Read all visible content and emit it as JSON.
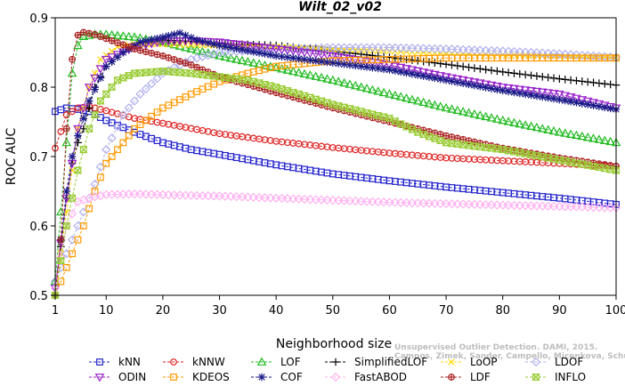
{
  "chart_data": {
    "type": "line",
    "title": "Wilt_02_v02",
    "xlabel": "Neighborhood size",
    "ylabel": "ROC AUC",
    "xlim": [
      1,
      100
    ],
    "ylim": [
      0.5,
      0.9
    ],
    "xticks": [
      "1",
      "10",
      "20",
      "30",
      "40",
      "50",
      "60",
      "70",
      "80",
      "90",
      "100"
    ],
    "yticks": [
      "0.5",
      "0.6",
      "0.7",
      "0.8",
      "0.9"
    ],
    "grid": false,
    "legend_position": "bottom",
    "watermark": [
      "Unsupervised Outlier Detection. DAMI, 2015.",
      "Campos, Zimek, Sander, Campello, Micenkova, Schubert, Assent, Houle"
    ],
    "series": [
      {
        "name": "kNN",
        "color": "#2222cc",
        "marker": "square",
        "points": [
          [
            1,
            0.765
          ],
          [
            3,
            0.77
          ],
          [
            5,
            0.768
          ],
          [
            7,
            0.765
          ],
          [
            10,
            0.752
          ],
          [
            15,
            0.735
          ],
          [
            20,
            0.72
          ],
          [
            25,
            0.71
          ],
          [
            30,
            0.703
          ],
          [
            40,
            0.688
          ],
          [
            50,
            0.675
          ],
          [
            60,
            0.665
          ],
          [
            70,
            0.656
          ],
          [
            80,
            0.648
          ],
          [
            90,
            0.64
          ],
          [
            100,
            0.631
          ]
        ]
      },
      {
        "name": "kNNW",
        "color": "#dd2222",
        "marker": "circle",
        "points": [
          [
            1,
            0.712
          ],
          [
            3,
            0.76
          ],
          [
            5,
            0.77
          ],
          [
            7,
            0.772
          ],
          [
            10,
            0.766
          ],
          [
            15,
            0.755
          ],
          [
            20,
            0.748
          ],
          [
            30,
            0.733
          ],
          [
            40,
            0.722
          ],
          [
            50,
            0.713
          ],
          [
            60,
            0.705
          ],
          [
            70,
            0.698
          ],
          [
            80,
            0.694
          ],
          [
            90,
            0.69
          ],
          [
            100,
            0.686
          ]
        ]
      },
      {
        "name": "LOF",
        "color": "#22bb22",
        "marker": "triangle-up",
        "points": [
          [
            1,
            0.52
          ],
          [
            2,
            0.62
          ],
          [
            3,
            0.72
          ],
          [
            4,
            0.82
          ],
          [
            5,
            0.86
          ],
          [
            6,
            0.873
          ],
          [
            8,
            0.876
          ],
          [
            10,
            0.876
          ],
          [
            15,
            0.872
          ],
          [
            20,
            0.865
          ],
          [
            25,
            0.855
          ],
          [
            30,
            0.845
          ],
          [
            40,
            0.828
          ],
          [
            50,
            0.81
          ],
          [
            60,
            0.79
          ],
          [
            70,
            0.77
          ],
          [
            80,
            0.752
          ],
          [
            90,
            0.735
          ],
          [
            100,
            0.72
          ]
        ]
      },
      {
        "name": "SimplifiedLOF",
        "color": "#000000",
        "marker": "plus",
        "points": [
          [
            1,
            0.5
          ],
          [
            2,
            0.57
          ],
          [
            3,
            0.64
          ],
          [
            4,
            0.69
          ],
          [
            5,
            0.72
          ],
          [
            6,
            0.74
          ],
          [
            8,
            0.8
          ],
          [
            10,
            0.83
          ],
          [
            13,
            0.85
          ],
          [
            16,
            0.862
          ],
          [
            20,
            0.868
          ],
          [
            25,
            0.866
          ],
          [
            30,
            0.863
          ],
          [
            40,
            0.86
          ],
          [
            50,
            0.852
          ],
          [
            60,
            0.843
          ],
          [
            70,
            0.833
          ],
          [
            80,
            0.822
          ],
          [
            90,
            0.812
          ],
          [
            100,
            0.803
          ]
        ]
      },
      {
        "name": "LoOP",
        "color": "#ffd700",
        "marker": "cross",
        "points": [
          [
            1,
            0.5
          ],
          [
            3,
            0.62
          ],
          [
            5,
            0.74
          ],
          [
            7,
            0.8
          ],
          [
            9,
            0.84
          ],
          [
            12,
            0.858
          ],
          [
            15,
            0.862
          ],
          [
            20,
            0.862
          ],
          [
            30,
            0.86
          ],
          [
            40,
            0.858
          ],
          [
            50,
            0.855
          ],
          [
            60,
            0.852
          ],
          [
            70,
            0.849
          ],
          [
            80,
            0.847
          ],
          [
            90,
            0.845
          ],
          [
            100,
            0.843
          ]
        ]
      },
      {
        "name": "LDOF",
        "color": "#b0b0ee",
        "marker": "diamond",
        "points": [
          [
            1,
            0.52
          ],
          [
            3,
            0.56
          ],
          [
            5,
            0.6
          ],
          [
            8,
            0.66
          ],
          [
            10,
            0.71
          ],
          [
            13,
            0.76
          ],
          [
            16,
            0.79
          ],
          [
            20,
            0.82
          ],
          [
            25,
            0.84
          ],
          [
            30,
            0.85
          ],
          [
            40,
            0.855
          ],
          [
            50,
            0.857
          ],
          [
            60,
            0.857
          ],
          [
            70,
            0.855
          ],
          [
            80,
            0.852
          ],
          [
            90,
            0.848
          ],
          [
            100,
            0.843
          ]
        ]
      },
      {
        "name": "ODIN",
        "color": "#9922cc",
        "marker": "triangle-down",
        "points": [
          [
            1,
            0.51
          ],
          [
            3,
            0.64
          ],
          [
            5,
            0.74
          ],
          [
            7,
            0.8
          ],
          [
            10,
            0.84
          ],
          [
            15,
            0.858
          ],
          [
            20,
            0.866
          ],
          [
            25,
            0.867
          ],
          [
            30,
            0.865
          ],
          [
            40,
            0.855
          ],
          [
            50,
            0.845
          ],
          [
            60,
            0.832
          ],
          [
            70,
            0.815
          ],
          [
            80,
            0.8
          ],
          [
            90,
            0.79
          ],
          [
            100,
            0.77
          ]
        ]
      },
      {
        "name": "KDEOS",
        "color": "#ff9900",
        "marker": "square",
        "points": [
          [
            1,
            0.5
          ],
          [
            2,
            0.52
          ],
          [
            4,
            0.56
          ],
          [
            6,
            0.6
          ],
          [
            8,
            0.65
          ],
          [
            10,
            0.69
          ],
          [
            15,
            0.74
          ],
          [
            20,
            0.77
          ],
          [
            25,
            0.79
          ],
          [
            30,
            0.808
          ],
          [
            35,
            0.82
          ],
          [
            40,
            0.83
          ],
          [
            50,
            0.838
          ],
          [
            60,
            0.84
          ],
          [
            70,
            0.842
          ],
          [
            80,
            0.842
          ],
          [
            90,
            0.842
          ],
          [
            100,
            0.842
          ]
        ]
      },
      {
        "name": "COF",
        "color": "#1a1a88",
        "marker": "asterisk",
        "points": [
          [
            1,
            0.5
          ],
          [
            2,
            0.58
          ],
          [
            3,
            0.65
          ],
          [
            4,
            0.7
          ],
          [
            5,
            0.73
          ],
          [
            7,
            0.78
          ],
          [
            10,
            0.83
          ],
          [
            13,
            0.85
          ],
          [
            16,
            0.865
          ],
          [
            20,
            0.872
          ],
          [
            23,
            0.878
          ],
          [
            26,
            0.868
          ],
          [
            30,
            0.86
          ],
          [
            40,
            0.845
          ],
          [
            45,
            0.84
          ],
          [
            50,
            0.835
          ],
          [
            60,
            0.825
          ],
          [
            70,
            0.81
          ],
          [
            80,
            0.795
          ],
          [
            90,
            0.782
          ],
          [
            100,
            0.768
          ]
        ]
      },
      {
        "name": "FastABOD",
        "color": "#ffb0f0",
        "marker": "diamond",
        "points": [
          [
            1,
            0.51
          ],
          [
            3,
            0.6
          ],
          [
            5,
            0.635
          ],
          [
            8,
            0.642
          ],
          [
            10,
            0.645
          ],
          [
            15,
            0.646
          ],
          [
            20,
            0.645
          ],
          [
            30,
            0.643
          ],
          [
            40,
            0.64
          ],
          [
            50,
            0.637
          ],
          [
            60,
            0.634
          ],
          [
            70,
            0.632
          ],
          [
            80,
            0.63
          ],
          [
            90,
            0.628
          ],
          [
            100,
            0.626
          ]
        ]
      },
      {
        "name": "LDF",
        "color": "#aa2222",
        "marker": "circle-plus",
        "points": [
          [
            1,
            0.5
          ],
          [
            2,
            0.58
          ],
          [
            3,
            0.74
          ],
          [
            4,
            0.84
          ],
          [
            5,
            0.875
          ],
          [
            6,
            0.879
          ],
          [
            8,
            0.876
          ],
          [
            10,
            0.87
          ],
          [
            15,
            0.855
          ],
          [
            20,
            0.845
          ],
          [
            25,
            0.832
          ],
          [
            30,
            0.815
          ],
          [
            40,
            0.792
          ],
          [
            50,
            0.77
          ],
          [
            60,
            0.75
          ],
          [
            70,
            0.73
          ],
          [
            80,
            0.712
          ],
          [
            90,
            0.698
          ],
          [
            100,
            0.686
          ]
        ]
      },
      {
        "name": "INFLO",
        "color": "#99cc33",
        "marker": "hourglass",
        "points": [
          [
            1,
            0.5
          ],
          [
            3,
            0.6
          ],
          [
            5,
            0.68
          ],
          [
            7,
            0.74
          ],
          [
            9,
            0.78
          ],
          [
            12,
            0.81
          ],
          [
            15,
            0.82
          ],
          [
            20,
            0.823
          ],
          [
            25,
            0.82
          ],
          [
            30,
            0.815
          ],
          [
            35,
            0.81
          ],
          [
            40,
            0.8
          ],
          [
            50,
            0.775
          ],
          [
            60,
            0.755
          ],
          [
            65,
            0.735
          ],
          [
            70,
            0.72
          ],
          [
            80,
            0.71
          ],
          [
            90,
            0.695
          ],
          [
            100,
            0.68
          ]
        ]
      }
    ]
  }
}
